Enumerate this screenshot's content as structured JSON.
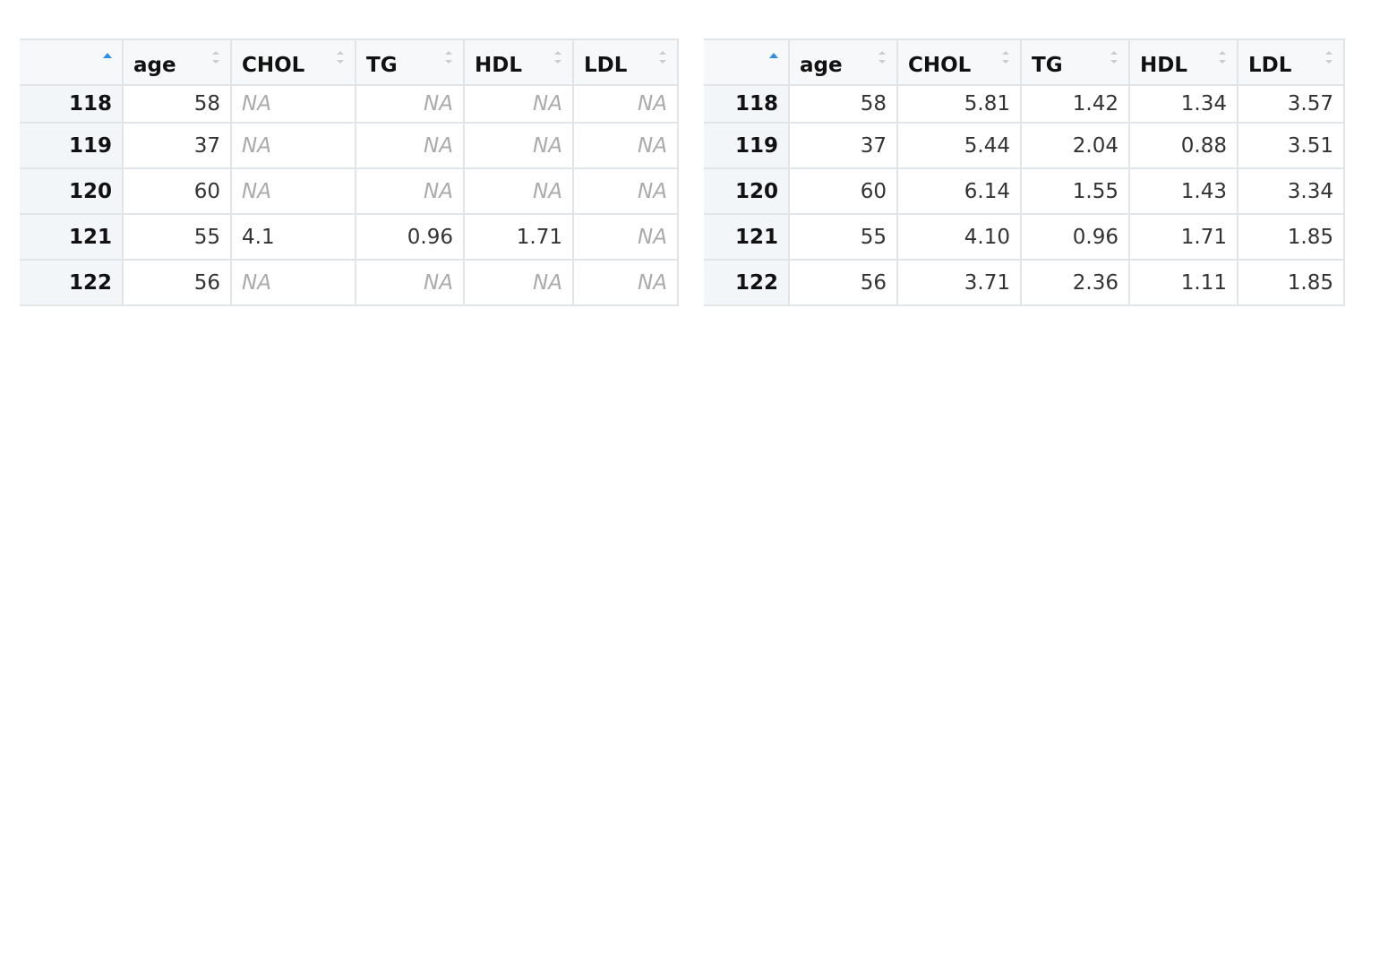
{
  "tables": [
    {
      "columns": [
        "age",
        "CHOL",
        "TG",
        "HDL",
        "LDL"
      ],
      "rows": [
        [
          "118",
          "58",
          "NA",
          "NA",
          "NA",
          "NA"
        ],
        [
          "119",
          "37",
          "NA",
          "NA",
          "NA",
          "NA"
        ],
        [
          "120",
          "60",
          "NA",
          "NA",
          "NA",
          "NA"
        ],
        [
          "121",
          "55",
          "4.1",
          "0.96",
          "1.71",
          "NA"
        ],
        [
          "122",
          "56",
          "NA",
          "NA",
          "NA",
          "NA"
        ]
      ]
    },
    {
      "columns": [
        "age",
        "CHOL",
        "TG",
        "HDL",
        "LDL"
      ],
      "rows": [
        [
          "118",
          "58",
          "5.81",
          "1.42",
          "1.34",
          "3.57"
        ],
        [
          "119",
          "37",
          "5.44",
          "2.04",
          "0.88",
          "3.51"
        ],
        [
          "120",
          "60",
          "6.14",
          "1.55",
          "1.43",
          "3.34"
        ],
        [
          "121",
          "55",
          "4.10",
          "0.96",
          "1.71",
          "1.85"
        ],
        [
          "122",
          "56",
          "3.71",
          "2.36",
          "1.11",
          "1.85"
        ]
      ]
    }
  ]
}
